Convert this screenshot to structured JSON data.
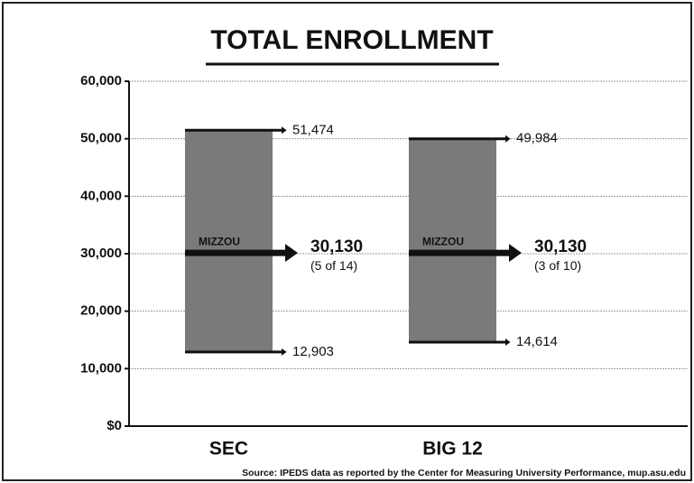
{
  "chart_data": {
    "type": "range",
    "title": "TOTAL ENROLLMENT",
    "categories": [
      "SEC",
      "BIG 12"
    ],
    "low": {
      "values": [
        12903,
        14614
      ],
      "value_labels": [
        "12,903",
        "14,614"
      ]
    },
    "high": {
      "values": [
        51474,
        49984
      ],
      "value_labels": [
        "51,474",
        "49,984"
      ]
    },
    "mizzou": {
      "name": "MIZZOU",
      "values": [
        30130,
        30130
      ],
      "value_labels": [
        "30,130",
        "30,130"
      ],
      "ranks": [
        "(5 of 14)",
        "(3 of 10)"
      ]
    },
    "color": "#7a7a7a",
    "ylim": [
      0,
      60000
    ],
    "yticks": [
      {
        "value": 0,
        "label": "$0"
      },
      {
        "value": 10000,
        "label": "10,000"
      },
      {
        "value": 20000,
        "label": "20,000"
      },
      {
        "value": 30000,
        "label": "30,000"
      },
      {
        "value": 40000,
        "label": "40,000"
      },
      {
        "value": 50000,
        "label": "50,000"
      },
      {
        "value": 60000,
        "label": "60,000"
      }
    ],
    "grid": true,
    "source": "Source: IPEDS data as reported by the Center for Measuring University Performance, mup.asu.edu"
  }
}
